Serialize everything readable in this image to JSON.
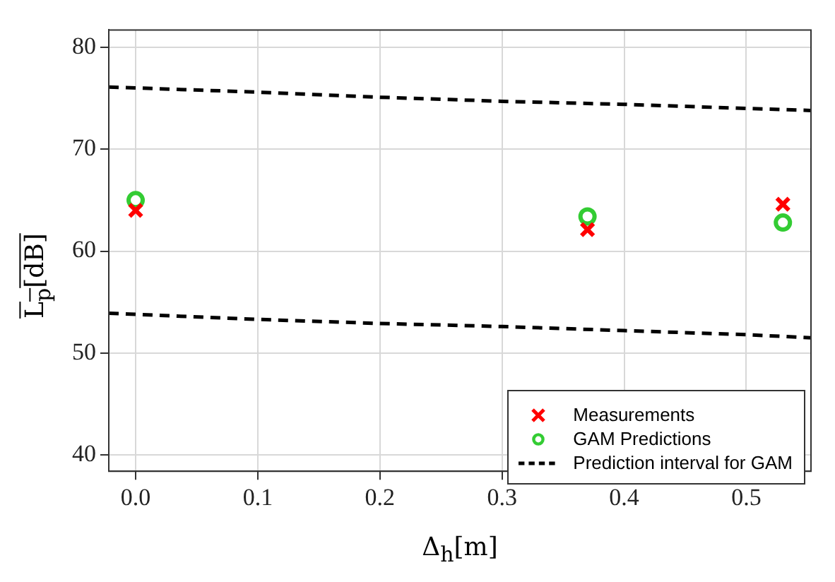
{
  "chart_data": {
    "type": "scatter",
    "xlabel": "Δ$_{h}$[m]",
    "ylabel": "L$_{p}$[dB]",
    "xlim": [
      -0.022,
      0.553
    ],
    "ylim": [
      38.4,
      81.7
    ],
    "xticks": [
      {
        "value": 0,
        "label": "0.0"
      },
      {
        "value": 0.1,
        "label": "0.1"
      },
      {
        "value": 0.2,
        "label": "0.2"
      },
      {
        "value": 0.3,
        "label": "0.3"
      },
      {
        "value": 0.4,
        "label": "0.4"
      },
      {
        "value": 0.5,
        "label": "0.5"
      }
    ],
    "yticks": [
      40,
      50,
      60,
      70,
      80
    ],
    "grid": true,
    "legend": "bottom right",
    "series": [
      {
        "name": "Measurements",
        "type": "scatter",
        "marker": "cross",
        "color": "#ff0000",
        "x": [
          0,
          0.37,
          0.53
        ],
        "values": [
          64.0,
          62.1,
          64.6
        ]
      },
      {
        "name": "GAM Predictions",
        "type": "scatter",
        "marker": "circle",
        "color": "#33cc33",
        "x": [
          0,
          0.37,
          0.53
        ],
        "values": [
          65.0,
          63.4,
          62.8
        ]
      },
      {
        "name": "Prediction interval for GAM",
        "type": "line",
        "line_style": "dashed",
        "marker": "none",
        "color": "#000000",
        "x": [
          -0.022,
          0.1,
          0.2,
          0.3,
          0.4,
          0.5,
          0.553
        ],
        "values": [
          76.1,
          75.6,
          75.1,
          74.7,
          74.4,
          74.0,
          73.8
        ]
      },
      {
        "type": "line",
        "line_style": "dashed",
        "marker": "none",
        "color": "#000000",
        "x": [
          -0.022,
          0.1,
          0.2,
          0.3,
          0.4,
          0.5,
          0.553
        ],
        "values": [
          53.9,
          53.3,
          52.9,
          52.6,
          52.2,
          51.8,
          51.5
        ]
      }
    ]
  }
}
